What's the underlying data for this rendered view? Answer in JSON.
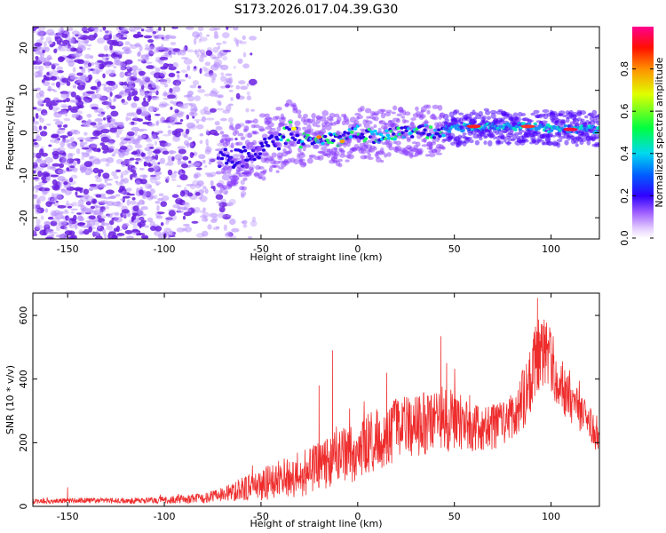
{
  "colors": {
    "snr_line": "#ee2c2c",
    "scatter_low": "#b58cff",
    "scatter_mid": "#6a1fe0",
    "colorbar_stops": [
      "#ffffff",
      "#e6ccff",
      "#8a2be2",
      "#3a00ff",
      "#0080ff",
      "#00e6e6",
      "#00ff40",
      "#ffff00",
      "#ff8000",
      "#ff0000",
      "#ff0080"
    ]
  },
  "chart_data": [
    {
      "type": "heatmap",
      "title": "S173.2026.017.04.39.G30",
      "xlabel": "Height of straight line (km)",
      "ylabel": "Frequency (Hz)",
      "xlim": [
        -168,
        125
      ],
      "ylim": [
        -25,
        25
      ],
      "xticks": [
        -150,
        -100,
        -50,
        0,
        50,
        100
      ],
      "xtick_labels": [
        "-150",
        "-100",
        "-50",
        "0",
        "50",
        "100"
      ],
      "yticks": [
        -20,
        -10,
        0,
        10,
        20
      ],
      "ytick_labels": [
        "-20",
        "-10",
        "0",
        "10",
        "20"
      ],
      "ridge": {
        "x": [
          -70,
          -60,
          -50,
          -40,
          -35,
          -30,
          -20,
          -10,
          0,
          10,
          20,
          30,
          40,
          50,
          60,
          70,
          80,
          90,
          100,
          110,
          125
        ],
        "freq": [
          -6,
          -6,
          -4,
          -2,
          1,
          -2,
          -1,
          -2,
          0,
          -1,
          0,
          0,
          0.5,
          1,
          1.5,
          1.5,
          1.5,
          1.5,
          1,
          0.8,
          0.8
        ]
      },
      "colorbar": {
        "label": "Normalized spectral amplitude",
        "range": [
          0,
          1
        ],
        "ticks": [
          0.0,
          0.2,
          0.4,
          0.6,
          0.8
        ],
        "tick_labels": [
          "0.0",
          "0.2",
          "0.4",
          "0.6",
          "0.8"
        ]
      }
    },
    {
      "type": "line",
      "title": "",
      "xlabel": "Height of straight line (km)",
      "ylabel": "SNR (10 * v/v)",
      "xlim": [
        -168,
        125
      ],
      "ylim": [
        0,
        670
      ],
      "xticks": [
        -150,
        -100,
        -50,
        0,
        50,
        100
      ],
      "xtick_labels": [
        "-150",
        "-100",
        "-50",
        "0",
        "50",
        "100"
      ],
      "yticks": [
        0,
        200,
        400,
        600
      ],
      "ytick_labels": [
        "0",
        "200",
        "400",
        "600"
      ],
      "envelope": {
        "x": [
          -168,
          -150,
          -120,
          -100,
          -90,
          -80,
          -70,
          -60,
          -50,
          -40,
          -30,
          -20,
          -10,
          0,
          10,
          20,
          30,
          40,
          50,
          60,
          70,
          80,
          85,
          90,
          95,
          100,
          110,
          120,
          125
        ],
        "mean": [
          15,
          18,
          18,
          20,
          22,
          25,
          35,
          55,
          70,
          85,
          100,
          130,
          150,
          180,
          210,
          240,
          255,
          265,
          255,
          245,
          250,
          280,
          330,
          420,
          510,
          450,
          330,
          260,
          200
        ],
        "spread": [
          8,
          10,
          10,
          12,
          14,
          18,
          25,
          40,
          60,
          70,
          80,
          90,
          100,
          110,
          110,
          110,
          110,
          110,
          100,
          90,
          80,
          90,
          110,
          130,
          140,
          120,
          80,
          60,
          50
        ]
      },
      "peaks": [
        {
          "x": -150,
          "y": 60
        },
        {
          "x": -20,
          "y": 380
        },
        {
          "x": -13,
          "y": 490
        },
        {
          "x": 15,
          "y": 420
        },
        {
          "x": 43,
          "y": 535
        },
        {
          "x": 46,
          "y": 450
        },
        {
          "x": 93,
          "y": 655
        }
      ]
    }
  ]
}
